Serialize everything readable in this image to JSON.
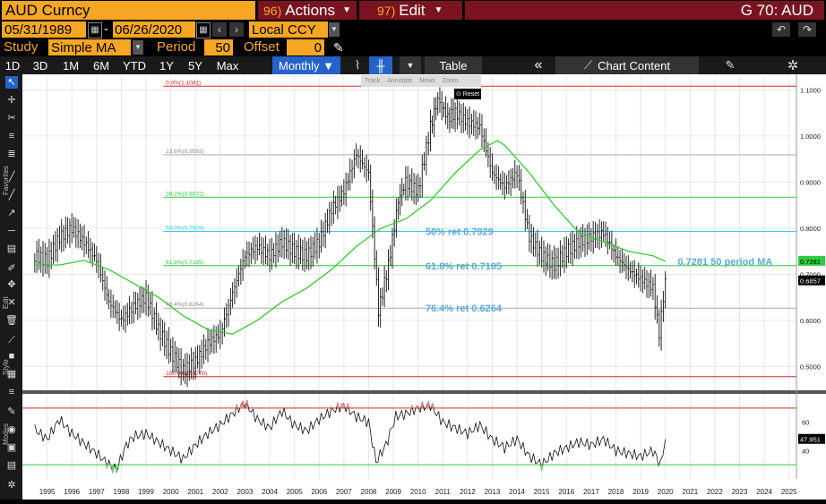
{
  "header": {
    "security": "AUD Curncy",
    "actions_num": "96)",
    "actions_label": "Actions",
    "edit_num": "97)",
    "edit_label": "Edit",
    "page_id": "G 70: AUD"
  },
  "dates": {
    "start": "05/31/1989",
    "end": "06/26/2020",
    "separator": "-",
    "currency": "Local CCY"
  },
  "study": {
    "label": "Study",
    "value": "Simple MA",
    "period_label": "Period",
    "period_value": "50",
    "offset_label": "Offset",
    "offset_value": "0"
  },
  "toolbar": {
    "ranges": [
      "1D",
      "3D",
      "1M",
      "6M",
      "YTD",
      "1Y",
      "5Y",
      "Max"
    ],
    "frequency": "Monthly ▼",
    "table_label": "Table",
    "chart_content_label": "Chart Content"
  },
  "mini_toolbar": {
    "items": [
      "Track",
      "Annotate",
      "News",
      "Zoom"
    ],
    "reset": "Reset"
  },
  "left_labels": {
    "favorites": "Favorites",
    "edit": "Edit",
    "style": "Style",
    "modes": "Modes"
  },
  "chart_data": {
    "type": "line",
    "instrument": "AUD Curncy",
    "frequency": "Monthly",
    "x_ticks": [
      "1995",
      "1996",
      "1997",
      "1998",
      "1999",
      "2000",
      "2001",
      "2002",
      "2003",
      "2004",
      "2005",
      "2006",
      "2007",
      "2008",
      "2009",
      "2010",
      "2011",
      "2012",
      "2013",
      "2014",
      "2015",
      "2016",
      "2017",
      "2018",
      "2019",
      "2020",
      "2021",
      "2022",
      "2023",
      "2024",
      "2025"
    ],
    "y_ticks": [
      "1.1000",
      "1.0000",
      "0.9000",
      "0.8000",
      "0.7000",
      "0.6000",
      "0.5000"
    ],
    "ylim": [
      0.45,
      1.13
    ],
    "price_series": {
      "name": "AUD",
      "x": [
        1995.0,
        1995.5,
        1996.0,
        1996.5,
        1997.0,
        1997.5,
        1998.0,
        1998.5,
        1999.0,
        1999.5,
        2000.0,
        2000.5,
        2001.0,
        2001.5,
        2002.0,
        2002.5,
        2003.0,
        2003.5,
        2004.0,
        2004.5,
        2005.0,
        2005.5,
        2006.0,
        2006.5,
        2007.0,
        2007.5,
        2008.0,
        2008.5,
        2008.9,
        2009.3,
        2009.7,
        2010.0,
        2010.5,
        2011.0,
        2011.3,
        2011.7,
        2012.0,
        2012.5,
        2013.0,
        2013.5,
        2014.0,
        2014.5,
        2015.0,
        2015.5,
        2016.0,
        2016.5,
        2017.0,
        2017.5,
        2018.0,
        2018.5,
        2019.0,
        2019.5,
        2020.0,
        2020.25,
        2020.5
      ],
      "y": [
        0.74,
        0.73,
        0.78,
        0.8,
        0.77,
        0.73,
        0.64,
        0.6,
        0.63,
        0.65,
        0.58,
        0.53,
        0.49,
        0.51,
        0.55,
        0.57,
        0.66,
        0.74,
        0.76,
        0.74,
        0.77,
        0.75,
        0.74,
        0.77,
        0.84,
        0.88,
        0.96,
        0.92,
        0.62,
        0.72,
        0.86,
        0.9,
        0.88,
        1.02,
        1.08,
        1.04,
        1.05,
        1.03,
        1.02,
        0.92,
        0.89,
        0.92,
        0.78,
        0.74,
        0.72,
        0.75,
        0.77,
        0.78,
        0.79,
        0.74,
        0.71,
        0.69,
        0.67,
        0.57,
        0.69
      ]
    },
    "ma_series": {
      "name": "50 period MA",
      "x": [
        1995.0,
        1996.0,
        1997.0,
        1998.0,
        1999.0,
        2000.0,
        2001.0,
        2002.0,
        2003.0,
        2004.0,
        2005.0,
        2006.0,
        2007.0,
        2008.0,
        2009.0,
        2010.0,
        2011.0,
        2012.0,
        2013.0,
        2013.7,
        2014.0,
        2015.0,
        2016.0,
        2017.0,
        2018.0,
        2019.0,
        2020.0,
        2020.5
      ],
      "y": [
        0.72,
        0.72,
        0.73,
        0.71,
        0.68,
        0.65,
        0.61,
        0.58,
        0.57,
        0.6,
        0.64,
        0.67,
        0.71,
        0.76,
        0.8,
        0.82,
        0.86,
        0.92,
        0.97,
        0.99,
        0.98,
        0.92,
        0.85,
        0.79,
        0.77,
        0.75,
        0.74,
        0.728
      ]
    },
    "fib_levels": [
      {
        "label": "0.0%(1.1081)",
        "value": 1.1081,
        "color": "#d62728"
      },
      {
        "label": "23.6%(0.9593)",
        "value": 0.9593,
        "color": "#aaaaaa"
      },
      {
        "label": "38.2%(0.8672)",
        "value": 0.8672,
        "color": "#2ecc40"
      },
      {
        "label": "50.0%(0.7929)",
        "value": 0.7929,
        "color": "#33ccee"
      },
      {
        "label": "61.8%(0.7185)",
        "value": 0.7185,
        "color": "#2ecc40"
      },
      {
        "label": "76.4%(0.6264)",
        "value": 0.6264,
        "color": "#aaaaaa"
      },
      {
        "label": "100.0%(0.4776)",
        "value": 0.4776,
        "color": "#d62728"
      }
    ],
    "annotations": [
      {
        "text": "50% ret 0.7929",
        "x": 2010.8,
        "y": 0.7929
      },
      {
        "text": "61.8% ret 0.7185",
        "x": 2010.8,
        "y": 0.7185
      },
      {
        "text": "76.4% ret 0.6264",
        "x": 2010.8,
        "y": 0.6264
      },
      {
        "text": "0.7281 50 period MA",
        "x": 2021.0,
        "y": 0.7281
      }
    ],
    "price_tags": [
      {
        "text": "0.7281",
        "value": 0.7281,
        "bg": "#2ecc40",
        "fg": "#000"
      },
      {
        "text": "0.6857",
        "value": 0.6857,
        "bg": "#000",
        "fg": "#fff"
      }
    ],
    "rsi": {
      "name": "RSI",
      "ylim": [
        20,
        80
      ],
      "y_ticks": [
        "60",
        "40"
      ],
      "upper": 70,
      "lower": 30,
      "last_value": "47.951",
      "x": [
        1995.0,
        1995.5,
        1996.0,
        1996.5,
        1997.0,
        1997.5,
        1998.0,
        1998.3,
        1998.7,
        1999.0,
        1999.5,
        2000.0,
        2000.5,
        2001.0,
        2001.5,
        2002.0,
        2002.5,
        2003.0,
        2003.5,
        2004.0,
        2004.5,
        2005.0,
        2005.5,
        2006.0,
        2006.5,
        2007.0,
        2007.5,
        2008.0,
        2008.5,
        2008.8,
        2009.2,
        2009.6,
        2010.0,
        2010.5,
        2011.0,
        2011.5,
        2012.0,
        2012.5,
        2013.0,
        2013.5,
        2014.0,
        2014.5,
        2015.0,
        2015.5,
        2016.0,
        2016.5,
        2017.0,
        2017.5,
        2018.0,
        2018.5,
        2019.0,
        2019.5,
        2020.0,
        2020.3,
        2020.5
      ],
      "y": [
        55,
        48,
        62,
        52,
        45,
        38,
        30,
        26,
        44,
        50,
        52,
        46,
        40,
        34,
        44,
        52,
        58,
        66,
        74,
        62,
        56,
        68,
        58,
        54,
        62,
        68,
        72,
        64,
        60,
        32,
        44,
        64,
        66,
        70,
        72,
        60,
        56,
        52,
        58,
        48,
        42,
        48,
        36,
        30,
        38,
        42,
        46,
        44,
        48,
        40,
        38,
        36,
        40,
        30,
        48
      ]
    }
  }
}
